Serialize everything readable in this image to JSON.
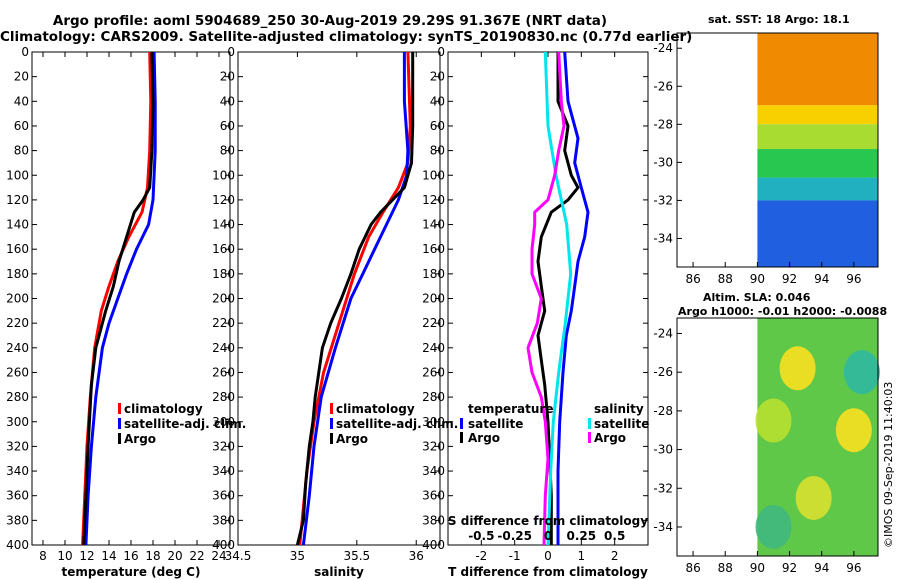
{
  "header": {
    "line1": "Argo profile: aoml 5904689_250 30-Aug-2019 29.29S 91.367E (NRT data)",
    "line2": "Climatology: CARS2009. Satellite-adjusted climatology: synTS_20190830.nc (0.77d earlier)"
  },
  "credit": "©IMOS 09-Sep-2019 11:40:03",
  "colors": {
    "climatology": "#ff0000",
    "satellite": "#0000ff",
    "argo": "#000000",
    "sat_salinity": "#00e5ee",
    "argo_salinity": "#ff00ff"
  },
  "chart_data": [
    {
      "type": "line",
      "name": "temperature-profile",
      "xlabel": "temperature (deg C)",
      "ylabel": "depth",
      "xlim": [
        7,
        25
      ],
      "ylim": [
        0,
        400
      ],
      "xticks": [
        8,
        10,
        12,
        14,
        16,
        18,
        20,
        22,
        24
      ],
      "yticks": [
        0,
        20,
        40,
        60,
        80,
        100,
        120,
        140,
        160,
        180,
        200,
        220,
        240,
        260,
        280,
        300,
        320,
        340,
        360,
        380,
        400
      ],
      "legend_position": "center-left",
      "series": [
        {
          "name": "climatology",
          "color": "#ff0000",
          "depth": [
            0,
            40,
            80,
            110,
            130,
            150,
            170,
            190,
            210,
            240,
            280,
            320,
            360,
            400
          ],
          "values": [
            17.7,
            17.8,
            17.7,
            17.5,
            17.0,
            15.8,
            14.8,
            14.0,
            13.3,
            12.7,
            12.3,
            12.0,
            11.8,
            11.6
          ]
        },
        {
          "name": "satellite-adj. clim.",
          "color": "#0000ff",
          "depth": [
            0,
            40,
            80,
            120,
            140,
            160,
            180,
            200,
            220,
            240,
            280,
            320,
            360,
            400
          ],
          "values": [
            18.1,
            18.2,
            18.2,
            18.0,
            17.6,
            16.5,
            15.6,
            14.8,
            14.0,
            13.4,
            12.8,
            12.4,
            12.1,
            11.9
          ]
        },
        {
          "name": "Argo",
          "color": "#000000",
          "depth": [
            0,
            40,
            80,
            110,
            120,
            130,
            150,
            170,
            190,
            210,
            230,
            240,
            270,
            320,
            360,
            400
          ],
          "values": [
            17.9,
            18.0,
            17.9,
            17.7,
            17.1,
            16.3,
            15.6,
            14.9,
            14.4,
            13.7,
            13.1,
            12.8,
            12.4,
            12.1,
            11.9,
            11.7
          ]
        }
      ]
    },
    {
      "type": "line",
      "name": "salinity-profile",
      "xlabel": "salinity",
      "ylabel": "depth",
      "xlim": [
        34.5,
        36.2
      ],
      "ylim": [
        0,
        400
      ],
      "xticks": [
        34.5,
        35,
        35.5,
        36
      ],
      "yticks": [
        0,
        20,
        40,
        60,
        80,
        100,
        120,
        140,
        160,
        180,
        200,
        220,
        240,
        260,
        280,
        300,
        320,
        340,
        360,
        380,
        400
      ],
      "legend_position": "center-right",
      "series": [
        {
          "name": "climatology",
          "color": "#ff0000",
          "depth": [
            0,
            60,
            90,
            110,
            130,
            150,
            180,
            220,
            260,
            300,
            340,
            400
          ],
          "values": [
            35.93,
            35.95,
            35.93,
            35.85,
            35.72,
            35.6,
            35.48,
            35.35,
            35.22,
            35.14,
            35.08,
            35.02
          ]
        },
        {
          "name": "satellite-adj. clim.",
          "color": "#0000ff",
          "depth": [
            0,
            40,
            80,
            100,
            120,
            140,
            160,
            180,
            200,
            240,
            280,
            320,
            360,
            400
          ],
          "values": [
            35.9,
            35.9,
            35.93,
            35.92,
            35.85,
            35.75,
            35.65,
            35.55,
            35.45,
            35.32,
            35.2,
            35.14,
            35.1,
            35.05
          ]
        },
        {
          "name": "Argo",
          "color": "#000000",
          "depth": [
            0,
            60,
            90,
            100,
            110,
            120,
            130,
            140,
            160,
            180,
            200,
            220,
            240,
            260,
            280,
            300,
            320,
            350,
            380,
            400
          ],
          "values": [
            35.97,
            35.97,
            35.96,
            35.93,
            35.9,
            35.8,
            35.7,
            35.62,
            35.52,
            35.45,
            35.37,
            35.28,
            35.21,
            35.18,
            35.15,
            35.13,
            35.1,
            35.07,
            35.05,
            35.0
          ]
        }
      ]
    },
    {
      "type": "line",
      "name": "difference-profile",
      "xlabel": "T difference from climatology",
      "ylabel": "depth",
      "x2label": "S difference from climatology",
      "xlim": [
        -3,
        3
      ],
      "ylim": [
        0,
        400
      ],
      "xticks": [
        -2,
        -1,
        0,
        1,
        2
      ],
      "x2ticks": [
        -0.5,
        -0.25,
        0,
        0.25,
        0.5
      ],
      "yticks": [
        0,
        20,
        40,
        60,
        80,
        100,
        120,
        140,
        160,
        180,
        200,
        220,
        240,
        260,
        280,
        300,
        320,
        340,
        360,
        380,
        400
      ],
      "legend_temperature_title": "temperature",
      "legend_salinity_title": "salinity",
      "series": [
        {
          "name": "T satellite",
          "color": "#0000ff",
          "depth": [
            0,
            40,
            70,
            90,
            110,
            130,
            150,
            170,
            190,
            210,
            230,
            260,
            300,
            340,
            400
          ],
          "values": [
            0.5,
            0.6,
            0.9,
            0.8,
            1.0,
            1.2,
            1.1,
            0.9,
            0.8,
            0.7,
            0.55,
            0.45,
            0.35,
            0.3,
            0.3
          ]
        },
        {
          "name": "T Argo",
          "color": "#000000",
          "depth": [
            0,
            40,
            60,
            80,
            100,
            110,
            120,
            130,
            150,
            170,
            190,
            210,
            230,
            250,
            270,
            300,
            330,
            360,
            400
          ],
          "values": [
            0.3,
            0.3,
            0.6,
            0.5,
            0.7,
            0.9,
            0.6,
            0.1,
            -0.2,
            -0.3,
            -0.2,
            -0.1,
            -0.3,
            -0.2,
            -0.1,
            0.0,
            0.05,
            0.1,
            0.1
          ]
        },
        {
          "name": "S satellite",
          "color": "#00e5ee",
          "depth": [
            0,
            60,
            100,
            140,
            180,
            220,
            260,
            300,
            340,
            400
          ],
          "values": [
            -0.02,
            0.0,
            0.06,
            0.14,
            0.17,
            0.13,
            0.08,
            0.04,
            0.02,
            0.0
          ]
        },
        {
          "name": "S Argo",
          "color": "#ff00ff",
          "depth": [
            0,
            40,
            60,
            80,
            100,
            120,
            130,
            140,
            160,
            180,
            200,
            220,
            240,
            260,
            280,
            300,
            330,
            360,
            400
          ],
          "values": [
            0.08,
            0.1,
            0.12,
            0.08,
            0.05,
            0.0,
            -0.1,
            -0.1,
            -0.12,
            -0.12,
            -0.05,
            -0.08,
            -0.15,
            -0.12,
            -0.05,
            -0.02,
            0.0,
            -0.02,
            -0.03
          ]
        }
      ]
    },
    {
      "type": "heatmap",
      "name": "sst-map",
      "title": "sat. SST: 18 Argo: 18.1",
      "xlim": [
        85,
        97.5
      ],
      "ylim": [
        -35.5,
        -23.2
      ],
      "xticks": [
        86,
        88,
        90,
        92,
        94,
        96
      ],
      "yticks": [
        -24,
        -26,
        -28,
        -30,
        -32,
        -34
      ],
      "data_extent_lon": [
        90,
        97.5
      ],
      "latitude_bands": [
        {
          "lat": [
            -24,
            -27
          ],
          "color": "#f08a00"
        },
        {
          "lat": [
            -27,
            -28
          ],
          "color": "#f8d000"
        },
        {
          "lat": [
            -28,
            -29.3
          ],
          "color": "#a8dc30"
        },
        {
          "lat": [
            -29.3,
            -30.8
          ],
          "color": "#28c850"
        },
        {
          "lat": [
            -30.8,
            -32
          ],
          "color": "#20b0c0"
        },
        {
          "lat": [
            -32,
            -35.5
          ],
          "color": "#2060e0"
        }
      ]
    },
    {
      "type": "heatmap",
      "name": "sla-map",
      "title1": "Altim. SLA: 0.046",
      "title2": "Argo h1000: -0.01 h2000: -0.0088",
      "xlim": [
        85,
        97.5
      ],
      "ylim": [
        -35.5,
        -23.2
      ],
      "xticks": [
        86,
        88,
        90,
        92,
        94,
        96
      ],
      "yticks": [
        -24,
        -26,
        -28,
        -30,
        -32,
        -34
      ],
      "data_extent_lon": [
        90,
        97.5
      ],
      "base_color": "#60c848",
      "blobs": [
        {
          "lon": 92.5,
          "lat": -25.8,
          "color": "#f8e020"
        },
        {
          "lon": 96,
          "lat": -29,
          "color": "#f8e020"
        },
        {
          "lon": 91,
          "lat": -28.5,
          "color": "#b8e030"
        },
        {
          "lon": 93.5,
          "lat": -32.5,
          "color": "#d8e030"
        },
        {
          "lon": 96.5,
          "lat": -26,
          "color": "#30b8a0"
        },
        {
          "lon": 91,
          "lat": -34,
          "color": "#40b880"
        }
      ]
    }
  ]
}
